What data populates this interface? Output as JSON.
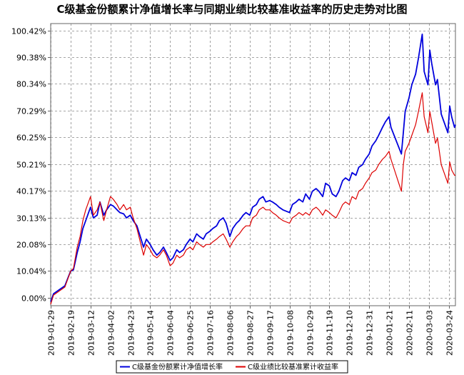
{
  "chart_data": {
    "type": "line",
    "title": "C级基金份额累计净值增长率与同期业绩比较基准收益率的历史走势对比图",
    "xlabel": "",
    "ylabel": "",
    "ylim": [
      -3,
      103
    ],
    "y_ticks": [
      "0.00%",
      "10.04%",
      "20.08%",
      "30.13%",
      "40.17%",
      "50.21%",
      "60.25%",
      "70.29%",
      "80.34%",
      "90.38%",
      "100.42%"
    ],
    "y_tick_values": [
      0,
      10.04,
      20.08,
      30.13,
      40.17,
      50.21,
      60.25,
      70.29,
      80.34,
      90.38,
      100.42
    ],
    "x_ticks": [
      "2019-01-29",
      "2019-02-19",
      "2019-03-12",
      "2019-04-02",
      "2019-04-23",
      "2019-05-14",
      "2019-06-04",
      "2019-06-25",
      "2019-07-16",
      "2019-08-06",
      "2019-08-27",
      "2019-09-17",
      "2019-10-08",
      "2019-10-29",
      "2019-11-19",
      "2019-12-10",
      "2019-12-31",
      "2020-01-21",
      "2020-02-11",
      "2020-03-03",
      "2020-03-24"
    ],
    "grid": true,
    "legend_position": "bottom-center",
    "series": [
      {
        "name": "C级基金份额累计净值增长率",
        "color": "#0000dd",
        "points": [
          [
            "2019-01-29",
            -1.5
          ],
          [
            "2019-02-01",
            1.5
          ],
          [
            "2019-02-13",
            4.5
          ],
          [
            "2019-02-19",
            10
          ],
          [
            "2019-02-22",
            10.5
          ],
          [
            "2019-02-26",
            17
          ],
          [
            "2019-03-01",
            21
          ],
          [
            "2019-03-04",
            26
          ],
          [
            "2019-03-07",
            29
          ],
          [
            "2019-03-12",
            34
          ],
          [
            "2019-03-15",
            30
          ],
          [
            "2019-03-19",
            31
          ],
          [
            "2019-03-22",
            36
          ],
          [
            "2019-03-26",
            31
          ],
          [
            "2019-03-29",
            33
          ],
          [
            "2019-04-02",
            35
          ],
          [
            "2019-04-05",
            34.5
          ],
          [
            "2019-04-09",
            33
          ],
          [
            "2019-04-12",
            32
          ],
          [
            "2019-04-16",
            31.5
          ],
          [
            "2019-04-19",
            30
          ],
          [
            "2019-04-23",
            31
          ],
          [
            "2019-04-26",
            29
          ],
          [
            "2019-04-30",
            27
          ],
          [
            "2019-05-07",
            19
          ],
          [
            "2019-05-10",
            22
          ],
          [
            "2019-05-14",
            20
          ],
          [
            "2019-05-17",
            18
          ],
          [
            "2019-05-21",
            16
          ],
          [
            "2019-05-24",
            17
          ],
          [
            "2019-05-28",
            19
          ],
          [
            "2019-05-31",
            17
          ],
          [
            "2019-06-04",
            14
          ],
          [
            "2019-06-07",
            15
          ],
          [
            "2019-06-11",
            18
          ],
          [
            "2019-06-14",
            17
          ],
          [
            "2019-06-18",
            18
          ],
          [
            "2019-06-21",
            20
          ],
          [
            "2019-06-25",
            22
          ],
          [
            "2019-06-28",
            21
          ],
          [
            "2019-07-02",
            24
          ],
          [
            "2019-07-05",
            23
          ],
          [
            "2019-07-09",
            22
          ],
          [
            "2019-07-12",
            24
          ],
          [
            "2019-07-16",
            25
          ],
          [
            "2019-07-19",
            26
          ],
          [
            "2019-07-23",
            27
          ],
          [
            "2019-07-26",
            29
          ],
          [
            "2019-07-30",
            30
          ],
          [
            "2019-08-02",
            28
          ],
          [
            "2019-08-06",
            23
          ],
          [
            "2019-08-09",
            26
          ],
          [
            "2019-08-13",
            28
          ],
          [
            "2019-08-16",
            29
          ],
          [
            "2019-08-20",
            31
          ],
          [
            "2019-08-23",
            32
          ],
          [
            "2019-08-27",
            31
          ],
          [
            "2019-08-30",
            34
          ],
          [
            "2019-09-03",
            35
          ],
          [
            "2019-09-06",
            37
          ],
          [
            "2019-09-10",
            38
          ],
          [
            "2019-09-13",
            36
          ],
          [
            "2019-09-17",
            36.5
          ],
          [
            "2019-09-20",
            36
          ],
          [
            "2019-09-24",
            35
          ],
          [
            "2019-09-27",
            34
          ],
          [
            "2019-10-01",
            33
          ],
          [
            "2019-10-08",
            32
          ],
          [
            "2019-10-11",
            35
          ],
          [
            "2019-10-15",
            36
          ],
          [
            "2019-10-18",
            37
          ],
          [
            "2019-10-22",
            36
          ],
          [
            "2019-10-25",
            39
          ],
          [
            "2019-10-29",
            37
          ],
          [
            "2019-11-01",
            40
          ],
          [
            "2019-11-05",
            41
          ],
          [
            "2019-11-08",
            40
          ],
          [
            "2019-11-12",
            38
          ],
          [
            "2019-11-15",
            43
          ],
          [
            "2019-11-19",
            42
          ],
          [
            "2019-11-22",
            39
          ],
          [
            "2019-11-26",
            38
          ],
          [
            "2019-11-29",
            40
          ],
          [
            "2019-12-03",
            44
          ],
          [
            "2019-12-06",
            45
          ],
          [
            "2019-12-10",
            44
          ],
          [
            "2019-12-13",
            47
          ],
          [
            "2019-12-17",
            46
          ],
          [
            "2019-12-20",
            49
          ],
          [
            "2019-12-24",
            50
          ],
          [
            "2019-12-27",
            52
          ],
          [
            "2019-12-31",
            54
          ],
          [
            "2020-01-03",
            57
          ],
          [
            "2020-01-07",
            59
          ],
          [
            "2020-01-10",
            61
          ],
          [
            "2020-01-14",
            64
          ],
          [
            "2020-01-17",
            66
          ],
          [
            "2020-01-21",
            68
          ],
          [
            "2020-01-23",
            64
          ],
          [
            "2020-02-03",
            54
          ],
          [
            "2020-02-05",
            62
          ],
          [
            "2020-02-07",
            70
          ],
          [
            "2020-02-11",
            75
          ],
          [
            "2020-02-14",
            80
          ],
          [
            "2020-02-18",
            84
          ],
          [
            "2020-02-21",
            90
          ],
          [
            "2020-02-25",
            99
          ],
          [
            "2020-02-27",
            85
          ],
          [
            "2020-03-02",
            80
          ],
          [
            "2020-03-04",
            93
          ],
          [
            "2020-03-06",
            88
          ],
          [
            "2020-03-10",
            80
          ],
          [
            "2020-03-12",
            82
          ],
          [
            "2020-03-16",
            69
          ],
          [
            "2020-03-19",
            66
          ],
          [
            "2020-03-23",
            62
          ],
          [
            "2020-03-25",
            72
          ],
          [
            "2020-03-27",
            68
          ],
          [
            "2020-03-30",
            64
          ],
          [
            "2020-03-31",
            65
          ]
        ]
      },
      {
        "name": "C级业绩比较基准累计收益率",
        "color": "#dd0000",
        "points": [
          [
            "2019-01-29",
            -2.5
          ],
          [
            "2019-02-01",
            1
          ],
          [
            "2019-02-13",
            4
          ],
          [
            "2019-02-19",
            10
          ],
          [
            "2019-02-22",
            11
          ],
          [
            "2019-02-26",
            19
          ],
          [
            "2019-03-01",
            23
          ],
          [
            "2019-03-04",
            29
          ],
          [
            "2019-03-07",
            33
          ],
          [
            "2019-03-12",
            38
          ],
          [
            "2019-03-15",
            31
          ],
          [
            "2019-03-19",
            33
          ],
          [
            "2019-03-22",
            36
          ],
          [
            "2019-03-26",
            29
          ],
          [
            "2019-03-29",
            33
          ],
          [
            "2019-04-02",
            38
          ],
          [
            "2019-04-05",
            37
          ],
          [
            "2019-04-09",
            35
          ],
          [
            "2019-04-12",
            33
          ],
          [
            "2019-04-16",
            35
          ],
          [
            "2019-04-19",
            33
          ],
          [
            "2019-04-23",
            34
          ],
          [
            "2019-04-26",
            30
          ],
          [
            "2019-04-30",
            26
          ],
          [
            "2019-05-07",
            16
          ],
          [
            "2019-05-10",
            20
          ],
          [
            "2019-05-14",
            18
          ],
          [
            "2019-05-17",
            16
          ],
          [
            "2019-05-21",
            15
          ],
          [
            "2019-05-24",
            16
          ],
          [
            "2019-05-28",
            18
          ],
          [
            "2019-05-31",
            16
          ],
          [
            "2019-06-04",
            12
          ],
          [
            "2019-06-07",
            13
          ],
          [
            "2019-06-11",
            16
          ],
          [
            "2019-06-14",
            15
          ],
          [
            "2019-06-18",
            16
          ],
          [
            "2019-06-21",
            18
          ],
          [
            "2019-06-25",
            19
          ],
          [
            "2019-06-28",
            18
          ],
          [
            "2019-07-02",
            21
          ],
          [
            "2019-07-05",
            20
          ],
          [
            "2019-07-09",
            19
          ],
          [
            "2019-07-12",
            20
          ],
          [
            "2019-07-16",
            20
          ],
          [
            "2019-07-19",
            21
          ],
          [
            "2019-07-23",
            22
          ],
          [
            "2019-07-26",
            23
          ],
          [
            "2019-07-30",
            24
          ],
          [
            "2019-08-02",
            22
          ],
          [
            "2019-08-06",
            19
          ],
          [
            "2019-08-09",
            21
          ],
          [
            "2019-08-13",
            23
          ],
          [
            "2019-08-16",
            24
          ],
          [
            "2019-08-20",
            26
          ],
          [
            "2019-08-23",
            27
          ],
          [
            "2019-08-27",
            27
          ],
          [
            "2019-08-30",
            30
          ],
          [
            "2019-09-03",
            31
          ],
          [
            "2019-09-06",
            33
          ],
          [
            "2019-09-10",
            34
          ],
          [
            "2019-09-13",
            33
          ],
          [
            "2019-09-17",
            33
          ],
          [
            "2019-09-20",
            32
          ],
          [
            "2019-09-24",
            31
          ],
          [
            "2019-09-27",
            30
          ],
          [
            "2019-10-01",
            29
          ],
          [
            "2019-10-08",
            28
          ],
          [
            "2019-10-11",
            30
          ],
          [
            "2019-10-15",
            31
          ],
          [
            "2019-10-18",
            32
          ],
          [
            "2019-10-22",
            31
          ],
          [
            "2019-10-25",
            32
          ],
          [
            "2019-10-29",
            31
          ],
          [
            "2019-11-01",
            33
          ],
          [
            "2019-11-05",
            34
          ],
          [
            "2019-11-08",
            33
          ],
          [
            "2019-11-12",
            31
          ],
          [
            "2019-11-15",
            33
          ],
          [
            "2019-11-19",
            32
          ],
          [
            "2019-11-22",
            31
          ],
          [
            "2019-11-26",
            30
          ],
          [
            "2019-11-29",
            32
          ],
          [
            "2019-12-03",
            35
          ],
          [
            "2019-12-06",
            36
          ],
          [
            "2019-12-10",
            35
          ],
          [
            "2019-12-13",
            38
          ],
          [
            "2019-12-17",
            37
          ],
          [
            "2019-12-20",
            40
          ],
          [
            "2019-12-24",
            41
          ],
          [
            "2019-12-27",
            43
          ],
          [
            "2019-12-31",
            45
          ],
          [
            "2020-01-03",
            47
          ],
          [
            "2020-01-07",
            48
          ],
          [
            "2020-01-10",
            50
          ],
          [
            "2020-01-14",
            52
          ],
          [
            "2020-01-17",
            53
          ],
          [
            "2020-01-21",
            55
          ],
          [
            "2020-01-23",
            52
          ],
          [
            "2020-02-03",
            40
          ],
          [
            "2020-02-05",
            50
          ],
          [
            "2020-02-07",
            55
          ],
          [
            "2020-02-11",
            58
          ],
          [
            "2020-02-14",
            61
          ],
          [
            "2020-02-18",
            65
          ],
          [
            "2020-02-21",
            70
          ],
          [
            "2020-02-25",
            77
          ],
          [
            "2020-02-27",
            68
          ],
          [
            "2020-03-02",
            62
          ],
          [
            "2020-03-04",
            70
          ],
          [
            "2020-03-06",
            66
          ],
          [
            "2020-03-10",
            58
          ],
          [
            "2020-03-12",
            60
          ],
          [
            "2020-03-16",
            50
          ],
          [
            "2020-03-19",
            47
          ],
          [
            "2020-03-23",
            43
          ],
          [
            "2020-03-25",
            51
          ],
          [
            "2020-03-27",
            48
          ],
          [
            "2020-03-30",
            46
          ],
          [
            "2020-03-31",
            46
          ]
        ]
      }
    ]
  }
}
